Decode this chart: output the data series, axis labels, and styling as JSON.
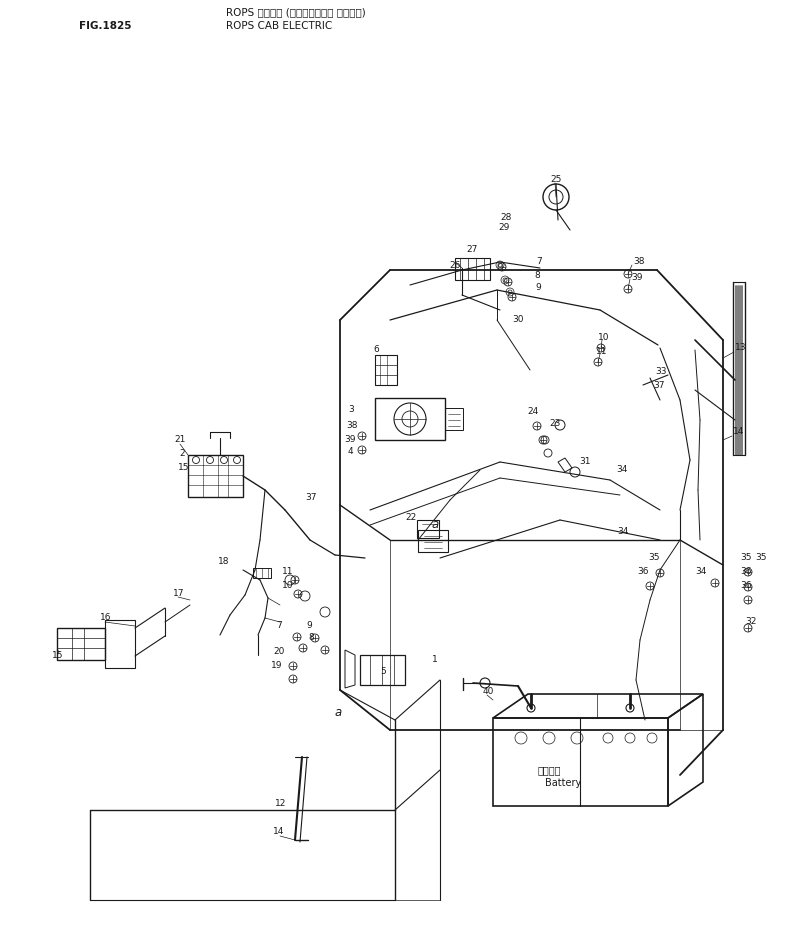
{
  "title_jp": "ROPS キャブ・ (エレクトリカル システム)",
  "title_en": "ROPS CAB ELECTRIC",
  "fig_label": "FIG.1825",
  "bg_color": "#ffffff",
  "line_color": "#1a1a1a",
  "text_color": "#1a1a1a",
  "fig_width": 7.89,
  "fig_height": 9.34,
  "dpi": 100
}
